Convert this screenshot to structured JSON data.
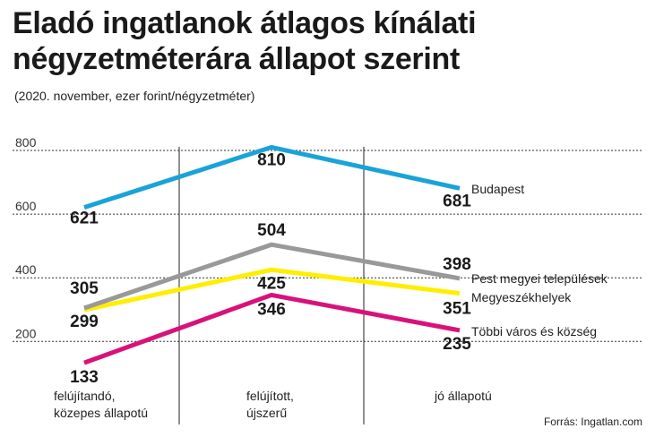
{
  "header": {
    "title_line1": "Eladó ingatlanok átlagos kínálati",
    "title_line2": "négyzetméterára állapot szerint",
    "subtitle": "(2020. november, ezer forint/négyzetméter)"
  },
  "footer": {
    "source": "Forrás: Ingatlan.com"
  },
  "chart_data": {
    "type": "line",
    "title": "Eladó ingatlanok átlagos kínálati négyzetméterára állapot szerint",
    "subtitle": "(2020. november, ezer forint/négyzetméter)",
    "categories": [
      [
        "felújítandó,",
        "közepes állapotú"
      ],
      [
        "felújított,",
        "újszerű"
      ],
      [
        "jó állapotú"
      ]
    ],
    "y_ticks": [
      200,
      400,
      600,
      800
    ],
    "ylim": [
      100,
      900
    ],
    "grid": "horizontal dotted, vertical separators",
    "legend": "labels at line ends (right)",
    "series": [
      {
        "name": "Budapest",
        "values": [
          621,
          810,
          681
        ],
        "color": "#1aa3d8"
      },
      {
        "name": "Pest megyei települések",
        "values": [
          305,
          504,
          398
        ],
        "color": "#999999"
      },
      {
        "name": "Megyeszékhelyek",
        "values": [
          299,
          425,
          351
        ],
        "color": "#ffee00"
      },
      {
        "name": "Többi város és község",
        "values": [
          133,
          346,
          235
        ],
        "color": "#d8127a"
      }
    ]
  }
}
